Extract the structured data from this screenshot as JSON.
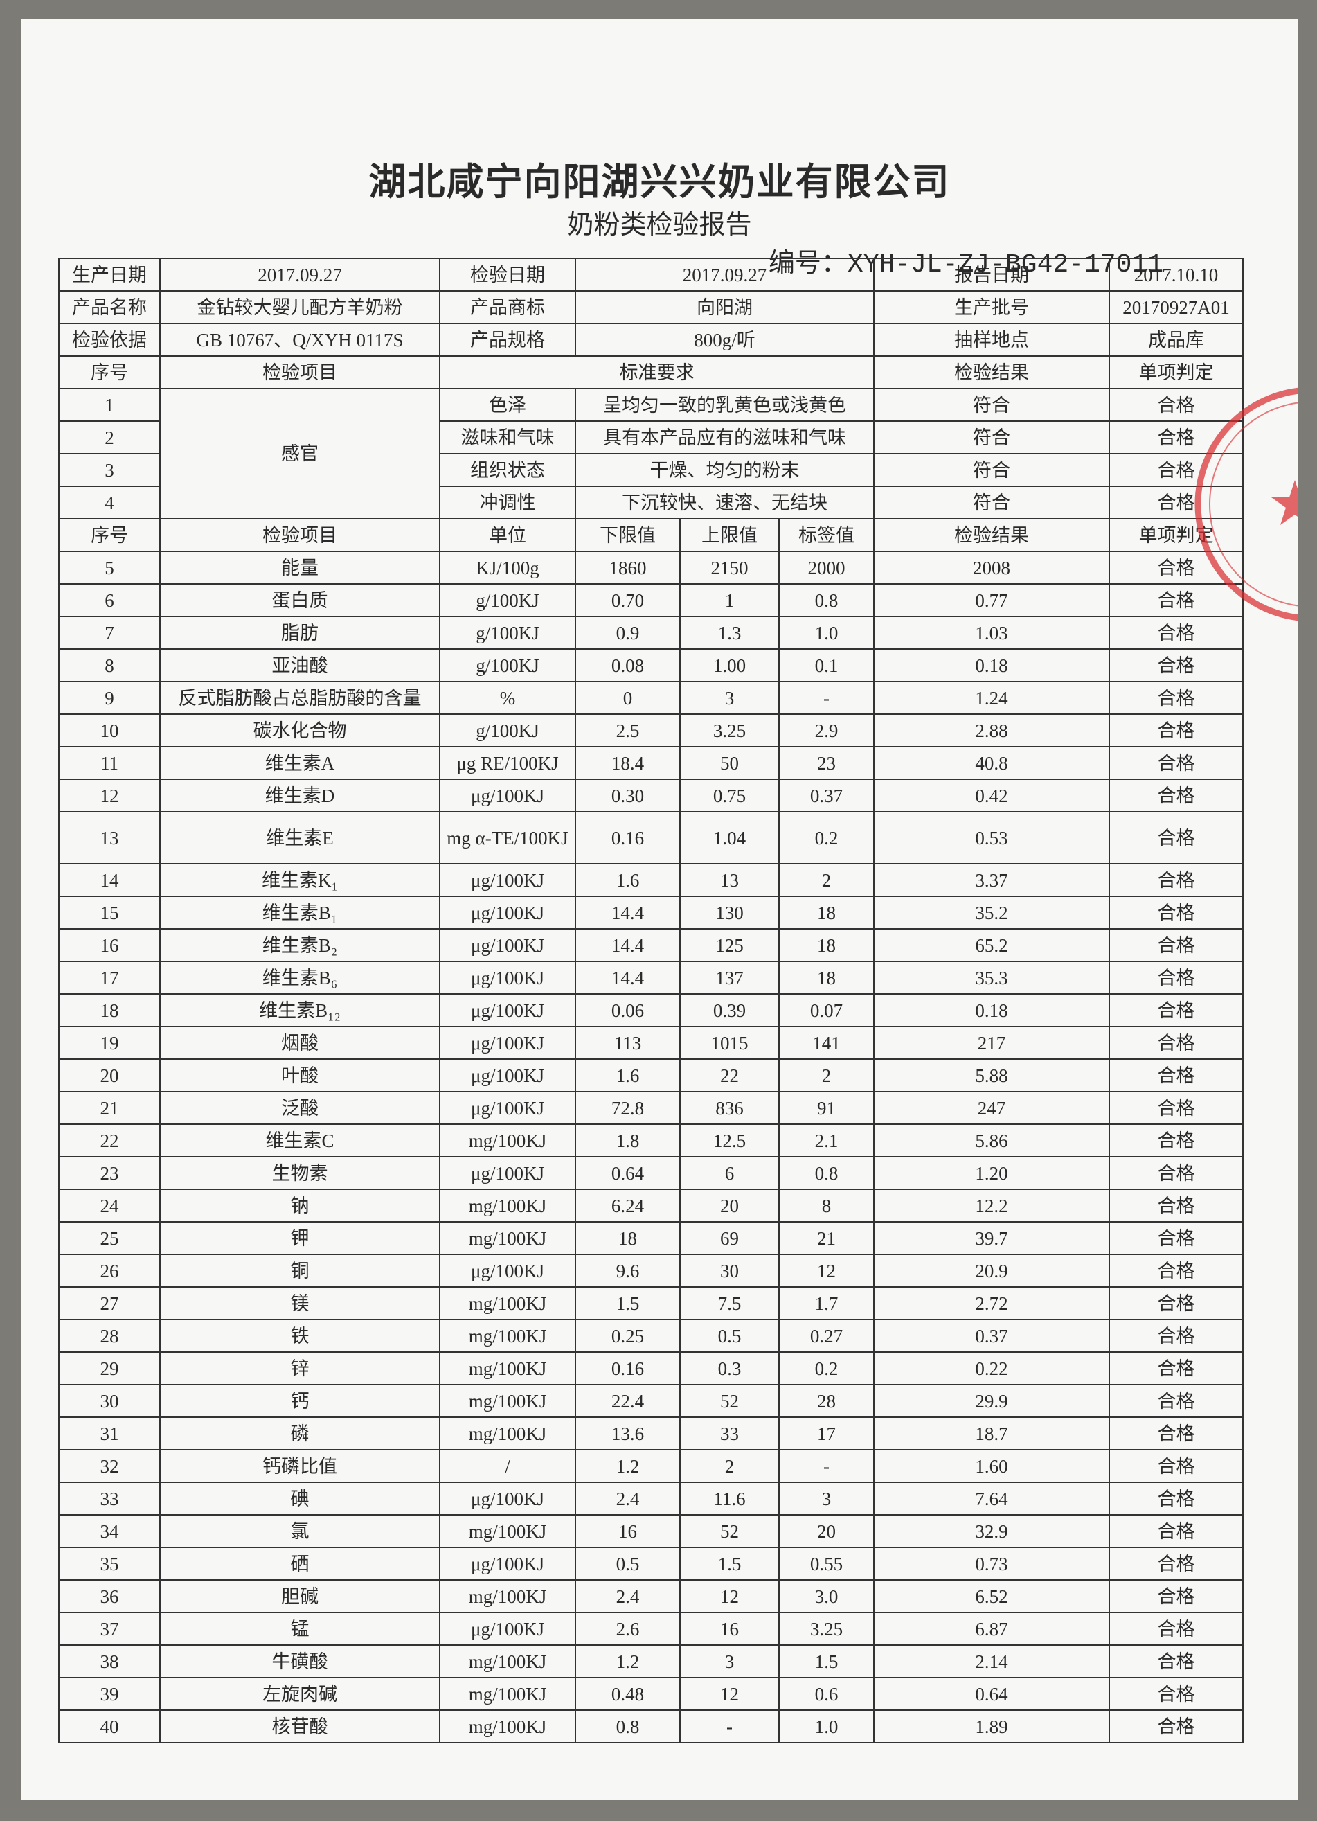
{
  "header": {
    "company": "湖北咸宁向阳湖兴兴奶业有限公司",
    "title": "奶粉类检验报告",
    "number": "编号：XYH-JL-ZJ-BG42-17011"
  },
  "info": [
    [
      "生产日期",
      "2017.09.27",
      "检验日期",
      "2017.09.27",
      "报告日期",
      "2017.10.10"
    ],
    [
      "产品名称",
      "金钻较大婴儿配方羊奶粉",
      "产品商标",
      "向阳湖",
      "生产批号",
      "20170927A01"
    ],
    [
      "检验依据",
      "GB 10767、Q/XYH 0117S",
      "产品规格",
      "800g/听",
      "抽样地点",
      "成品库"
    ]
  ],
  "sensory": {
    "header": [
      "序号",
      "检验项目",
      "标准要求",
      "检验结果",
      "单项判定"
    ],
    "category": "感官",
    "rows": [
      [
        "1",
        "色泽",
        "呈均匀一致的乳黄色或浅黄色",
        "符合",
        "合格"
      ],
      [
        "2",
        "滋味和气味",
        "具有本产品应有的滋味和气味",
        "符合",
        "合格"
      ],
      [
        "3",
        "组织状态",
        "干燥、均匀的粉末",
        "符合",
        "合格"
      ],
      [
        "4",
        "冲调性",
        "下沉较快、速溶、无结块",
        "符合",
        "合格"
      ]
    ]
  },
  "nutrients": {
    "header": [
      "序号",
      "检验项目",
      "单位",
      "下限值",
      "上限值",
      "标签值",
      "检验结果",
      "单项判定"
    ],
    "rows": [
      [
        "5",
        "能量",
        "KJ/100g",
        "1860",
        "2150",
        "2000",
        "2008",
        "合格"
      ],
      [
        "6",
        "蛋白质",
        "g/100KJ",
        "0.70",
        "1",
        "0.8",
        "0.77",
        "合格"
      ],
      [
        "7",
        "脂肪",
        "g/100KJ",
        "0.9",
        "1.3",
        "1.0",
        "1.03",
        "合格"
      ],
      [
        "8",
        "亚油酸",
        "g/100KJ",
        "0.08",
        "1.00",
        "0.1",
        "0.18",
        "合格"
      ],
      [
        "9",
        "反式脂肪酸占总脂肪酸的含量",
        "%",
        "0",
        "3",
        "-",
        "1.24",
        "合格"
      ],
      [
        "10",
        "碳水化合物",
        "g/100KJ",
        "2.5",
        "3.25",
        "2.9",
        "2.88",
        "合格"
      ],
      [
        "11",
        "维生素A",
        "μg RE/100KJ",
        "18.4",
        "50",
        "23",
        "40.8",
        "合格"
      ],
      [
        "12",
        "维生素D",
        "μg/100KJ",
        "0.30",
        "0.75",
        "0.37",
        "0.42",
        "合格"
      ],
      [
        "13",
        "维生素E",
        "mg α-TE/100KJ",
        "0.16",
        "1.04",
        "0.2",
        "0.53",
        "合格"
      ],
      [
        "14",
        "维生素K₁",
        "μg/100KJ",
        "1.6",
        "13",
        "2",
        "3.37",
        "合格"
      ],
      [
        "15",
        "维生素B₁",
        "μg/100KJ",
        "14.4",
        "130",
        "18",
        "35.2",
        "合格"
      ],
      [
        "16",
        "维生素B₂",
        "μg/100KJ",
        "14.4",
        "125",
        "18",
        "65.2",
        "合格"
      ],
      [
        "17",
        "维生素B₆",
        "μg/100KJ",
        "14.4",
        "137",
        "18",
        "35.3",
        "合格"
      ],
      [
        "18",
        "维生素B₁₂",
        "μg/100KJ",
        "0.06",
        "0.39",
        "0.07",
        "0.18",
        "合格"
      ],
      [
        "19",
        "烟酸",
        "μg/100KJ",
        "113",
        "1015",
        "141",
        "217",
        "合格"
      ],
      [
        "20",
        "叶酸",
        "μg/100KJ",
        "1.6",
        "22",
        "2",
        "5.88",
        "合格"
      ],
      [
        "21",
        "泛酸",
        "μg/100KJ",
        "72.8",
        "836",
        "91",
        "247",
        "合格"
      ],
      [
        "22",
        "维生素C",
        "mg/100KJ",
        "1.8",
        "12.5",
        "2.1",
        "5.86",
        "合格"
      ],
      [
        "23",
        "生物素",
        "μg/100KJ",
        "0.64",
        "6",
        "0.8",
        "1.20",
        "合格"
      ],
      [
        "24",
        "钠",
        "mg/100KJ",
        "6.24",
        "20",
        "8",
        "12.2",
        "合格"
      ],
      [
        "25",
        "钾",
        "mg/100KJ",
        "18",
        "69",
        "21",
        "39.7",
        "合格"
      ],
      [
        "26",
        "铜",
        "μg/100KJ",
        "9.6",
        "30",
        "12",
        "20.9",
        "合格"
      ],
      [
        "27",
        "镁",
        "mg/100KJ",
        "1.5",
        "7.5",
        "1.7",
        "2.72",
        "合格"
      ],
      [
        "28",
        "铁",
        "mg/100KJ",
        "0.25",
        "0.5",
        "0.27",
        "0.37",
        "合格"
      ],
      [
        "29",
        "锌",
        "mg/100KJ",
        "0.16",
        "0.3",
        "0.2",
        "0.22",
        "合格"
      ],
      [
        "30",
        "钙",
        "mg/100KJ",
        "22.4",
        "52",
        "28",
        "29.9",
        "合格"
      ],
      [
        "31",
        "磷",
        "mg/100KJ",
        "13.6",
        "33",
        "17",
        "18.7",
        "合格"
      ],
      [
        "32",
        "钙磷比值",
        "/",
        "1.2",
        "2",
        "-",
        "1.60",
        "合格"
      ],
      [
        "33",
        "碘",
        "μg/100KJ",
        "2.4",
        "11.6",
        "3",
        "7.64",
        "合格"
      ],
      [
        "34",
        "氯",
        "mg/100KJ",
        "16",
        "52",
        "20",
        "32.9",
        "合格"
      ],
      [
        "35",
        "硒",
        "μg/100KJ",
        "0.5",
        "1.5",
        "0.55",
        "0.73",
        "合格"
      ],
      [
        "36",
        "胆碱",
        "mg/100KJ",
        "2.4",
        "12",
        "3.0",
        "6.52",
        "合格"
      ],
      [
        "37",
        "锰",
        "μg/100KJ",
        "2.6",
        "16",
        "3.25",
        "6.87",
        "合格"
      ],
      [
        "38",
        "牛磺酸",
        "mg/100KJ",
        "1.2",
        "3",
        "1.5",
        "2.14",
        "合格"
      ],
      [
        "39",
        "左旋肉碱",
        "mg/100KJ",
        "0.48",
        "12",
        "0.6",
        "0.64",
        "合格"
      ],
      [
        "40",
        "核苷酸",
        "mg/100KJ",
        "0.8",
        "-",
        "1.0",
        "1.89",
        "合格"
      ]
    ]
  }
}
